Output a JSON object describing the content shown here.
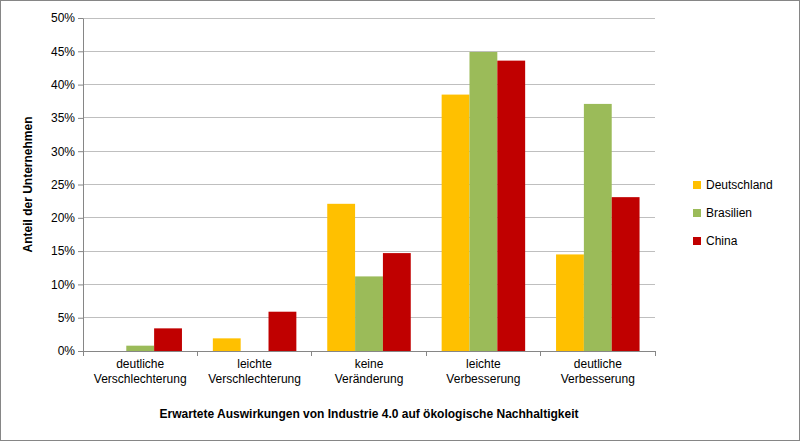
{
  "chart_data": {
    "type": "bar",
    "x_label": "Erwartete Auswirkungen von Industrie 4.0 auf ökologische Nachhaltigkeit",
    "y_label": "Anteil der Unternehmen",
    "categories": [
      "deutliche Verschlechterung",
      "leichte Verschlechterung",
      "keine Veränderung",
      "leichte Verbesserung",
      "deutliche Verbesserung"
    ],
    "series": [
      {
        "name": "Deutschland",
        "color": "#ffc000",
        "values": [
          0,
          1.9,
          22.1,
          38.5,
          14.5
        ]
      },
      {
        "name": "Brasilien",
        "color": "#9bbb59",
        "values": [
          0.8,
          0,
          11.2,
          44.9,
          37.1
        ]
      },
      {
        "name": "China",
        "color": "#c00000",
        "values": [
          3.4,
          5.9,
          14.7,
          43.6,
          23.1
        ]
      }
    ],
    "ylim": [
      0,
      50
    ],
    "yticks": [
      {
        "value": 0,
        "label": "0%"
      },
      {
        "value": 5,
        "label": "5%"
      },
      {
        "value": 10,
        "label": "10%"
      },
      {
        "value": 15,
        "label": "15%"
      },
      {
        "value": 20,
        "label": "20%"
      },
      {
        "value": 25,
        "label": "25%"
      },
      {
        "value": 30,
        "label": "30%"
      },
      {
        "value": 35,
        "label": "35%"
      },
      {
        "value": 40,
        "label": "40%"
      },
      {
        "value": 45,
        "label": "45%"
      },
      {
        "value": 50,
        "label": "50%"
      }
    ],
    "grid": true,
    "legend": "right"
  }
}
